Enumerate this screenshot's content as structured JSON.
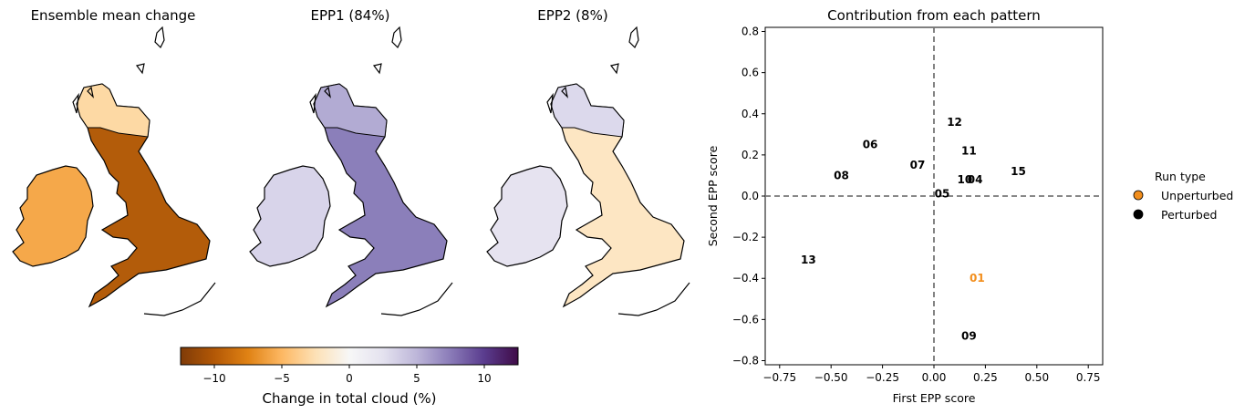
{
  "map_titles": [
    "Ensemble mean change",
    "EPP1 (84%)",
    "EPP2 (8%)"
  ],
  "colorbar": {
    "label": "Change in total cloud (%)",
    "min": -12.5,
    "max": 12.5,
    "ticks": [
      "−10",
      "−5",
      "0",
      "5",
      "10"
    ],
    "colors": [
      "#3f0b47",
      "#5a3c8e",
      "#8a7bb8",
      "#bdb6d9",
      "#e4e2ef",
      "#f7f7f7",
      "#fde1b6",
      "#fdb863",
      "#e08214",
      "#b35806",
      "#7f3b08"
    ]
  },
  "map_colors": {
    "ensemble_mean": {
      "gb": "#b35c0a",
      "ireland": "#f5a84a",
      "north": "#fdd9a4"
    },
    "epp1": {
      "gb": "#8b7fba",
      "ireland": "#d8d4ea",
      "north": "#b2abd3"
    },
    "epp2": {
      "gb": "#fde6c3",
      "ireland": "#e6e3f0",
      "north": "#dcd9ec"
    }
  },
  "chart_data": {
    "type": "scatter",
    "title": "Contribution from each pattern",
    "xlabel": "First EPP score",
    "ylabel": "Second EPP score",
    "xlim": [
      -0.82,
      0.82
    ],
    "ylim": [
      -0.82,
      0.82
    ],
    "xticks": [
      "−0.75",
      "−0.50",
      "−0.25",
      "0.00",
      "0.25",
      "0.50",
      "0.75"
    ],
    "yticks": [
      "−0.8",
      "−0.6",
      "−0.4",
      "−0.2",
      "0.0",
      "0.2",
      "0.4",
      "0.6",
      "0.8"
    ],
    "reference_lines": {
      "x": 0,
      "y": 0,
      "style": "dashed"
    },
    "points": [
      {
        "label": "01",
        "x": 0.21,
        "y": -0.4,
        "type": "Unperturbed"
      },
      {
        "label": "04",
        "x": 0.2,
        "y": 0.08,
        "type": "Perturbed"
      },
      {
        "label": "05",
        "x": 0.04,
        "y": 0.01,
        "type": "Perturbed"
      },
      {
        "label": "06",
        "x": -0.31,
        "y": 0.25,
        "type": "Perturbed"
      },
      {
        "label": "07",
        "x": -0.08,
        "y": 0.15,
        "type": "Perturbed"
      },
      {
        "label": "08",
        "x": -0.45,
        "y": 0.1,
        "type": "Perturbed"
      },
      {
        "label": "09",
        "x": 0.17,
        "y": -0.68,
        "type": "Perturbed"
      },
      {
        "label": "10",
        "x": 0.15,
        "y": 0.08,
        "type": "Perturbed"
      },
      {
        "label": "11",
        "x": 0.17,
        "y": 0.22,
        "type": "Perturbed"
      },
      {
        "label": "12",
        "x": 0.1,
        "y": 0.36,
        "type": "Perturbed"
      },
      {
        "label": "13",
        "x": -0.61,
        "y": -0.31,
        "type": "Perturbed"
      },
      {
        "label": "15",
        "x": 0.41,
        "y": 0.12,
        "type": "Perturbed"
      }
    ],
    "legend": {
      "title": "Run type",
      "position": "right",
      "entries": [
        {
          "name": "Unperturbed",
          "color": "#f28e1c"
        },
        {
          "name": "Perturbed",
          "color": "#000000"
        }
      ]
    }
  }
}
